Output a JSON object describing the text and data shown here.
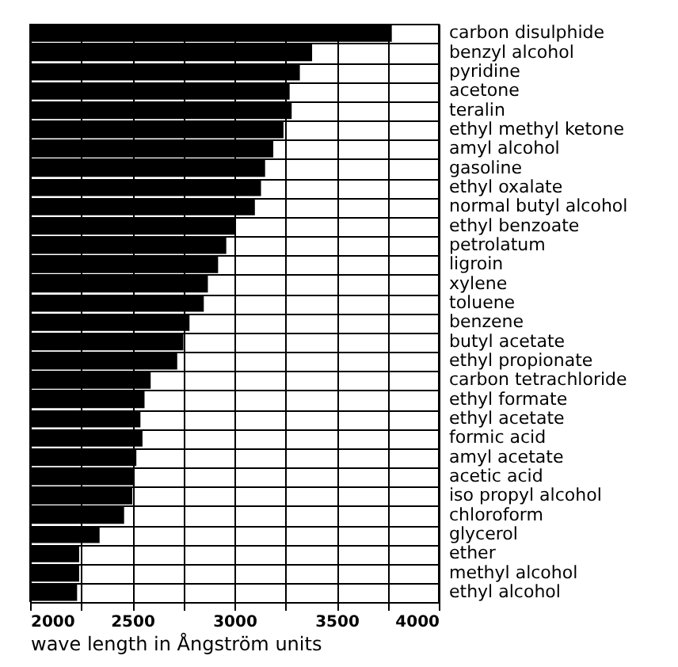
{
  "chart_data": {
    "type": "bar",
    "orientation": "horizontal",
    "xlabel": "wave length in Ångström units",
    "categories": [
      "carbon disulphide",
      "benzyl alcohol",
      "pyridine",
      "acetone",
      "teralin",
      "ethyl methyl ketone",
      "amyl alcohol",
      "gasoline",
      "ethyl oxalate",
      "normal butyl alcohol",
      "ethyl benzoate",
      "petrolatum",
      "ligroin",
      "xylene",
      "toluene",
      "benzene",
      "butyl acetate",
      "ethyl propionate",
      "carbon tetrachloride",
      "ethyl formate",
      "ethyl acetate",
      "formic acid",
      "amyl acetate",
      "acetic acid",
      "iso propyl alcohol",
      "chloroform",
      "glycerol",
      "ether",
      "methyl alcohol",
      "ethyl alcohol"
    ],
    "values": [
      3770,
      3380,
      3320,
      3270,
      3280,
      3240,
      3190,
      3150,
      3130,
      3100,
      3000,
      2960,
      2920,
      2870,
      2850,
      2780,
      2750,
      2720,
      2590,
      2560,
      2540,
      2550,
      2520,
      2510,
      2500,
      2460,
      2340,
      2240,
      2240,
      2230
    ],
    "color": "#000000",
    "xlim": [
      2000,
      4000
    ],
    "xticks": [
      2000,
      {
        "value": 2250,
        "label": null
      },
      2500,
      {
        "value": 2750,
        "label": null
      },
      3000,
      {
        "value": 3250,
        "label": null
      },
      3500,
      {
        "value": 3750,
        "label": null
      },
      4000
    ],
    "grid": true
  }
}
